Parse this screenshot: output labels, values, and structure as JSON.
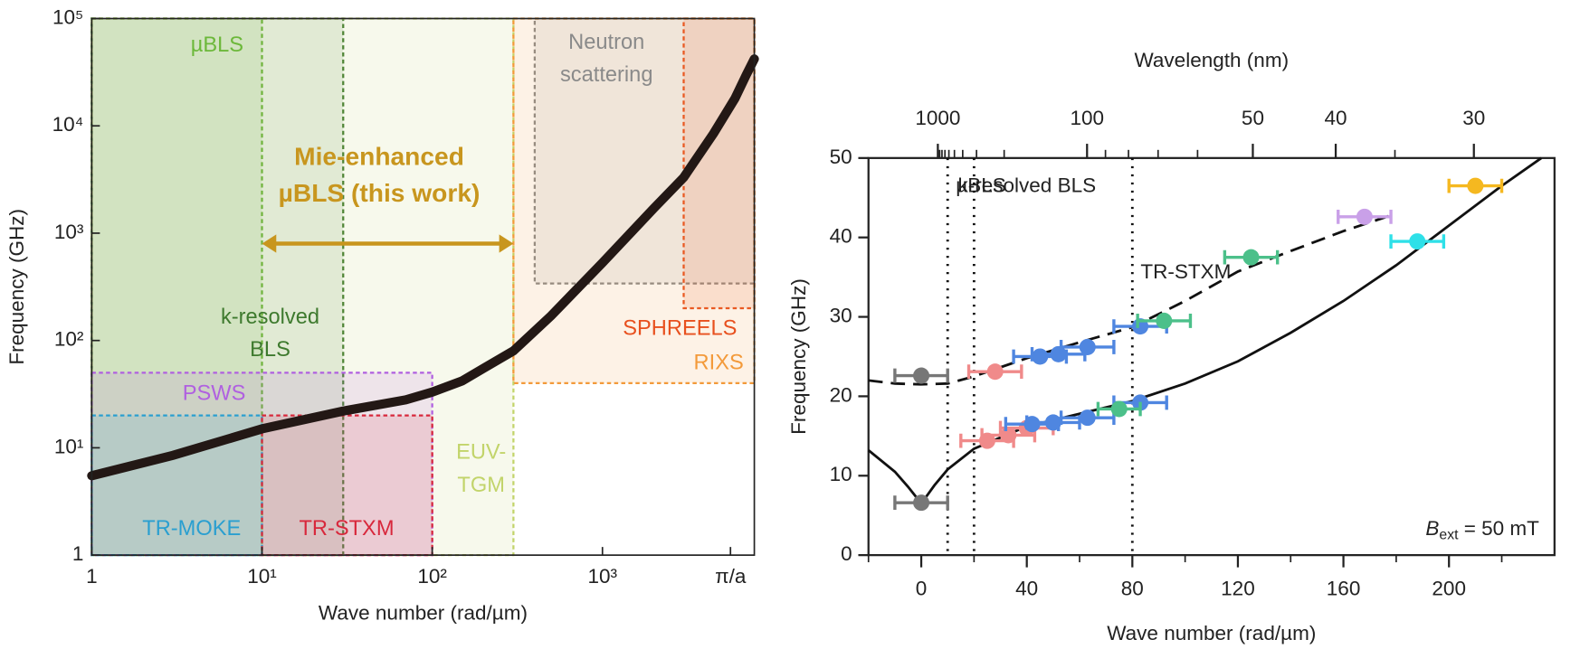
{
  "chart_data": [
    {
      "type": "region",
      "xlabel": "Wave number (rad/µm)",
      "ylabel": "Frequency (GHz)",
      "xscale": "log",
      "yscale": "log",
      "xlim": [
        1,
        7800
      ],
      "ylim": [
        1,
        100000
      ],
      "xticks": [
        1,
        {
          "value": 10,
          "label": "10¹"
        },
        {
          "value": 100,
          "label": "10²"
        },
        {
          "value": 1000,
          "label": "10³"
        },
        {
          "value": 5650,
          "label": "π/a"
        }
      ],
      "yticks": [
        1,
        {
          "value": 10,
          "label": "10¹"
        },
        {
          "value": 100,
          "label": "10²"
        },
        {
          "value": 1000,
          "label": "10³"
        },
        {
          "value": 10000,
          "label": "10⁴"
        },
        {
          "value": 100000,
          "label": "10⁵"
        }
      ],
      "regions": [
        {
          "label": [
            "µBLS"
          ],
          "color": "#6cb83a",
          "xrange": [
            1,
            10
          ],
          "yrange": [
            1,
            100000
          ]
        },
        {
          "label": [
            "k-resolved",
            "BLS"
          ],
          "color": "#3e7a2e",
          "xrange": [
            1,
            30
          ],
          "yrange": [
            1,
            100000
          ]
        },
        {
          "label": [
            "EUV-",
            "TGM"
          ],
          "color": "#c2d46a",
          "xrange": [
            1,
            300
          ],
          "yrange": [
            1,
            100000
          ]
        },
        {
          "label": [
            "Neutron",
            "scattering"
          ],
          "color": "#8a8a8a",
          "xrange": [
            400,
            7800
          ],
          "yrange": [
            340,
            100000
          ]
        },
        {
          "label": [
            "SPHREELS"
          ],
          "color": "#e8501e",
          "xrange": [
            3000,
            7800
          ],
          "yrange": [
            200,
            100000
          ]
        },
        {
          "label": [
            "RIXS"
          ],
          "color": "#f39a3a",
          "xrange": [
            300,
            7800
          ],
          "yrange": [
            40,
            100000
          ]
        },
        {
          "label": [
            "PSWS"
          ],
          "color": "#b060e0",
          "xrange": [
            1,
            100
          ],
          "yrange": [
            1,
            50
          ]
        },
        {
          "label": [
            "TR-MOKE"
          ],
          "color": "#2a9fd0",
          "xrange": [
            1,
            10
          ],
          "yrange": [
            1,
            20
          ]
        },
        {
          "label": [
            "TR-STXM"
          ],
          "color": "#d8283c",
          "xrange": [
            10,
            100
          ],
          "yrange": [
            1,
            20
          ]
        }
      ],
      "series": [
        {
          "color": "#231815",
          "x": [
            1,
            3,
            10,
            30,
            70,
            100,
            150,
            200,
            300,
            500,
            1000,
            2000,
            3000,
            4500,
            6000,
            7000,
            7800
          ],
          "values": [
            5.5,
            8.5,
            15,
            22,
            28,
            33,
            42,
            55,
            80,
            170,
            530,
            1700,
            3300,
            8500,
            18000,
            30000,
            42000
          ]
        }
      ],
      "annotation": {
        "label": [
          "Mie-enhanced",
          "µBLS (this work)"
        ],
        "color": "#c8961e",
        "xrange": [
          10,
          300
        ],
        "y": 800
      }
    },
    {
      "type": "scatter",
      "xlabel": "Wave number (rad/µm)",
      "ylabel": "Frequency (GHz)",
      "x2label": "Wavelength (nm)",
      "xlim": [
        -20,
        240
      ],
      "ylim": [
        0,
        50
      ],
      "xticks": [
        0,
        40,
        80,
        120,
        160,
        200
      ],
      "xminorticks": [
        -20,
        20,
        60,
        100,
        140,
        180,
        220
      ],
      "yticks": [
        0,
        10,
        20,
        30,
        40,
        50
      ],
      "x2ticks": [
        1000,
        100,
        50,
        40,
        30
      ],
      "x2minorticks": [
        900,
        800,
        700,
        600,
        500,
        400,
        300,
        200,
        90,
        80,
        70,
        60,
        35
      ],
      "vlines": [
        {
          "x": 10,
          "label": "µBLS"
        },
        {
          "x": 20,
          "label": "k-resolved BLS"
        },
        {
          "x": 80,
          "label": "TR-STXM"
        }
      ],
      "annotation": [
        "B",
        "ext",
        " = 50 mT"
      ],
      "lines": [
        {
          "style": "dashed",
          "color": "#111",
          "x": [
            -20,
            -10,
            0,
            10,
            20,
            40,
            60,
            80,
            100,
            120,
            140,
            160,
            180
          ],
          "values": [
            22,
            21.6,
            21.5,
            21.6,
            22.5,
            24.8,
            26.8,
            28.7,
            32,
            35.7,
            38.3,
            40.8,
            43
          ]
        },
        {
          "style": "solid",
          "color": "#111",
          "x": [
            -20,
            -10,
            -5,
            0,
            5,
            10,
            20,
            40,
            60,
            80,
            100,
            120,
            140,
            160,
            180,
            200,
            220,
            235
          ],
          "values": [
            13.2,
            10.5,
            8.6,
            6.5,
            8.8,
            10.8,
            13.4,
            16.2,
            17.8,
            19.4,
            21.6,
            24.4,
            28,
            32,
            36.5,
            41.5,
            46.5,
            50
          ]
        }
      ],
      "series": [
        {
          "color": "#777777",
          "x": [
            0,
            0
          ],
          "values": [
            22.6,
            6.6
          ],
          "xerr": [
            10,
            10
          ]
        },
        {
          "color": "#f08a8a",
          "x": [
            28,
            25,
            33,
            40
          ],
          "values": [
            23.1,
            14.4,
            15.1,
            16
          ],
          "xerr": [
            10,
            10,
            10,
            10
          ]
        },
        {
          "color": "#4f86e0",
          "x": [
            45,
            52,
            63,
            83,
            42,
            50,
            63,
            83
          ],
          "values": [
            25,
            25.3,
            26.2,
            28.8,
            16.5,
            16.7,
            17.3,
            19.2
          ],
          "xerr": [
            10,
            10,
            10,
            10,
            10,
            10,
            10,
            10
          ]
        },
        {
          "color": "#4cc08a",
          "x": [
            92,
            75,
            125
          ],
          "values": [
            29.5,
            18.4,
            37.5
          ],
          "xerr": [
            10,
            8,
            10
          ]
        },
        {
          "color": "#c9a0e8",
          "x": [
            168
          ],
          "values": [
            42.6
          ],
          "xerr": [
            10
          ]
        },
        {
          "color": "#2ee0e8",
          "x": [
            188
          ],
          "values": [
            39.5
          ],
          "xerr": [
            10
          ]
        },
        {
          "color": "#f5b820",
          "x": [
            210
          ],
          "values": [
            46.5
          ],
          "xerr": [
            10
          ]
        }
      ]
    }
  ]
}
